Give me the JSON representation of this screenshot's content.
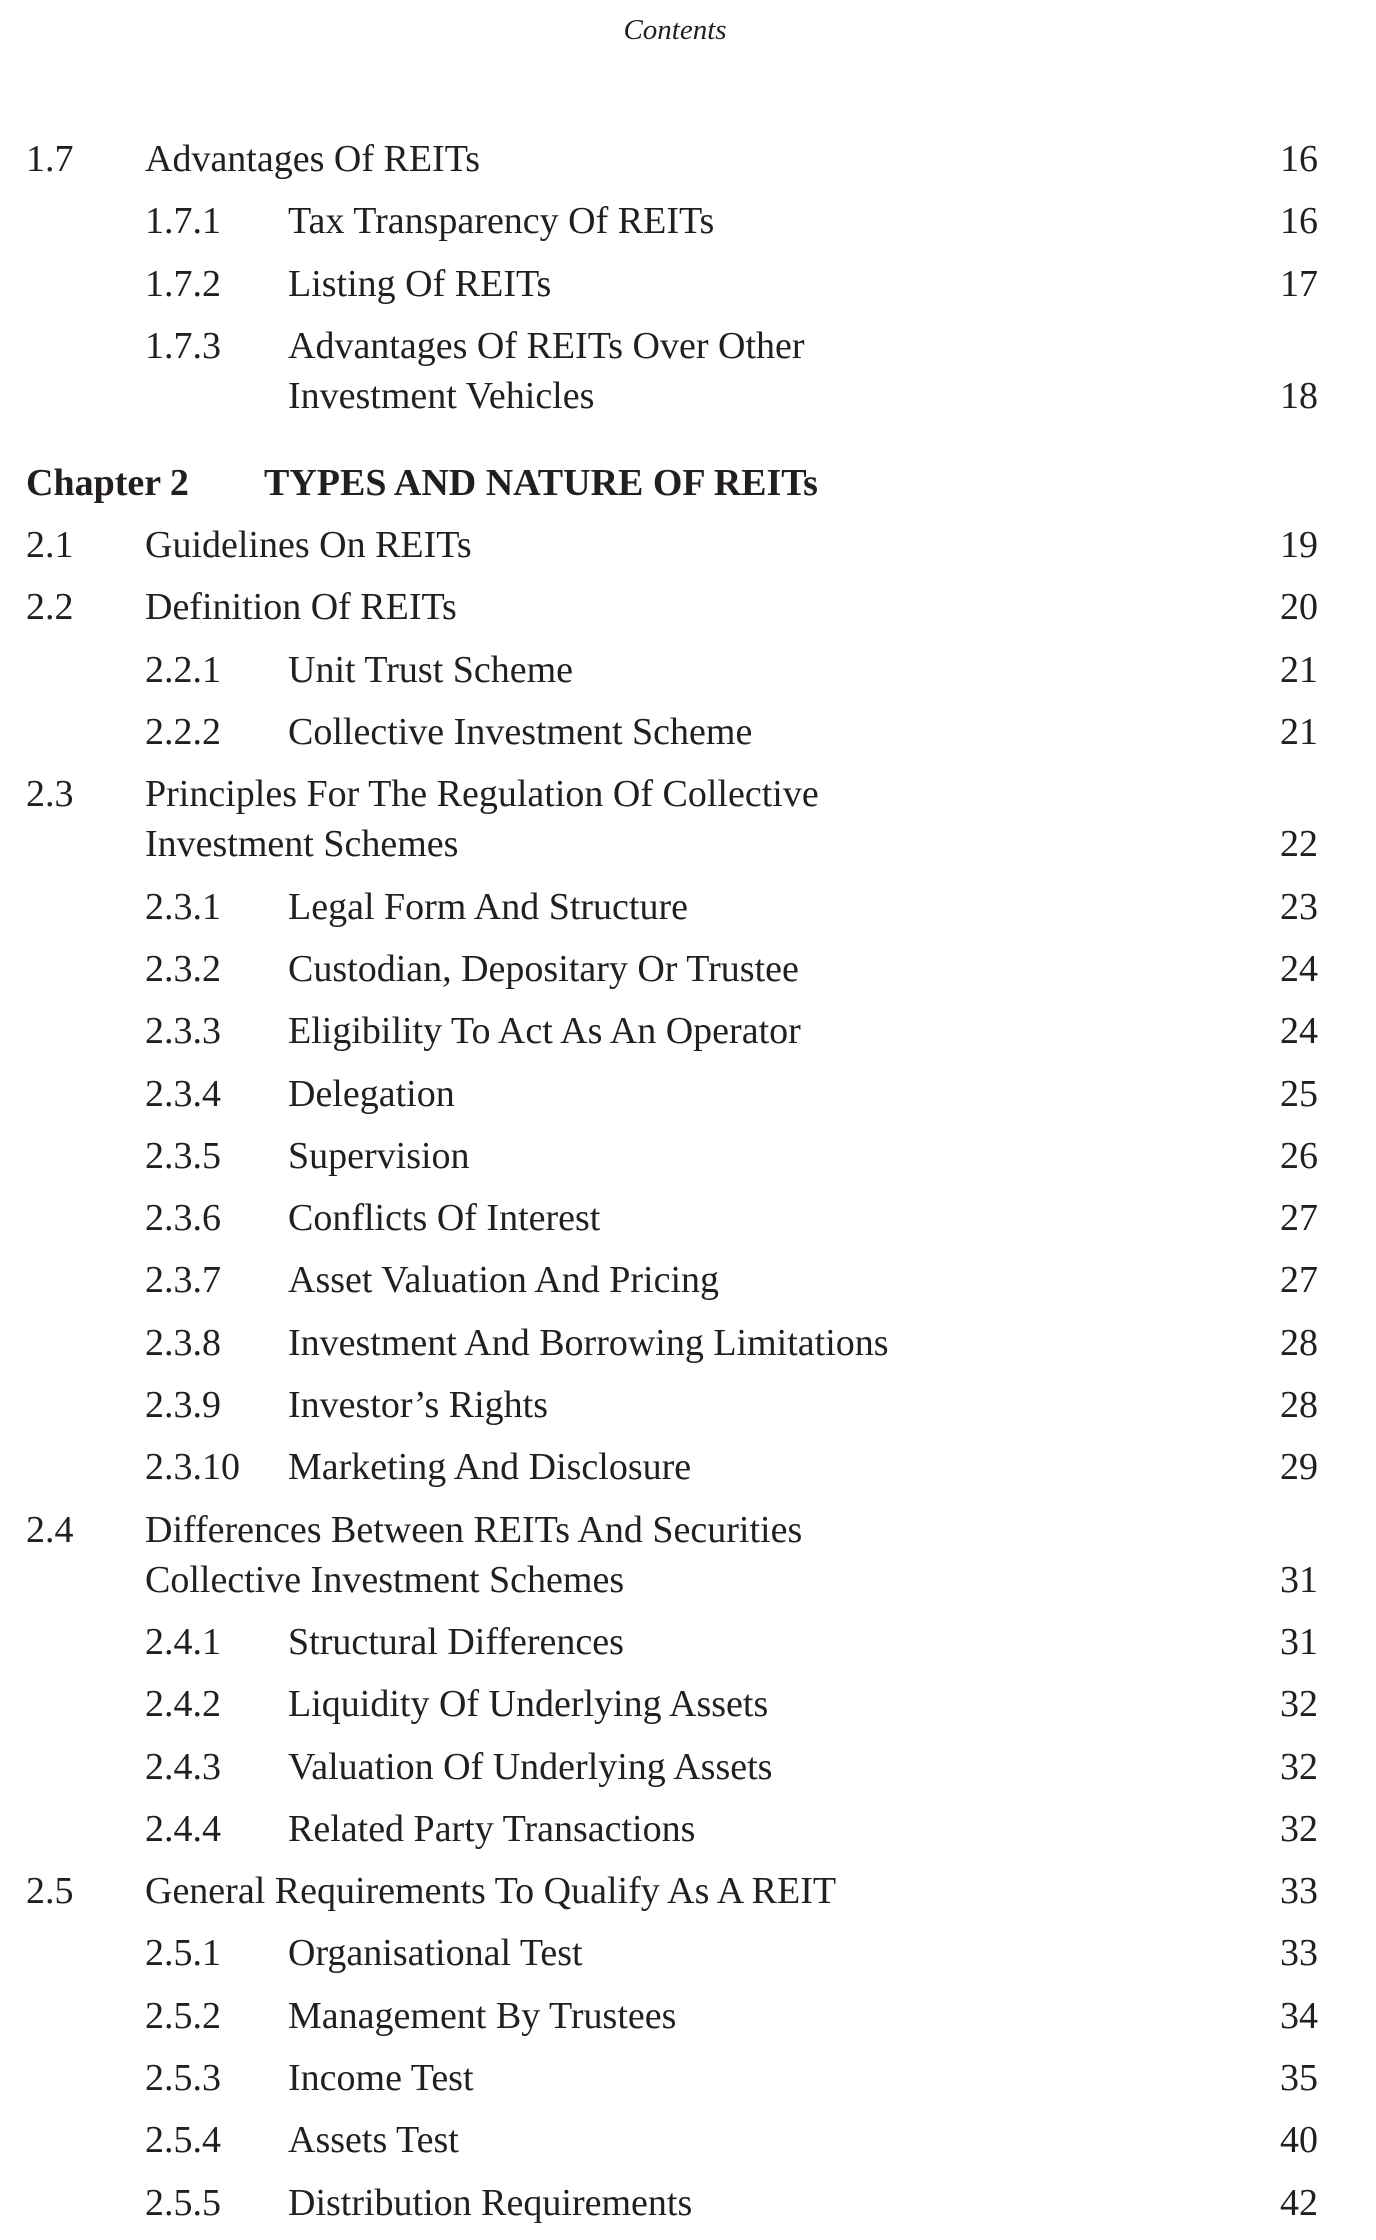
{
  "header": {
    "title": "Contents"
  },
  "entries": [
    {
      "type": "lvl1",
      "number": "1.7",
      "lines": [
        "Advantages Of REITs"
      ],
      "page": "16"
    },
    {
      "type": "lvl2",
      "number": "1.7.1",
      "lines": [
        "Tax Transparency Of REITs"
      ],
      "page": "16"
    },
    {
      "type": "lvl2",
      "number": "1.7.2",
      "lines": [
        "Listing Of REITs"
      ],
      "page": "17"
    },
    {
      "type": "lvl2",
      "number": "1.7.3",
      "lines": [
        "Advantages Of REITs Over Other",
        "Investment Vehicles"
      ],
      "page": "18"
    },
    {
      "type": "chapter",
      "number": "Chapter 2",
      "lines": [
        "TYPES AND NATURE OF REITs"
      ],
      "page": ""
    },
    {
      "type": "lvl1",
      "number": "2.1",
      "lines": [
        "Guidelines On REITs"
      ],
      "page": "19"
    },
    {
      "type": "lvl1",
      "number": "2.2",
      "lines": [
        "Definition Of REITs"
      ],
      "page": "20"
    },
    {
      "type": "lvl2",
      "number": "2.2.1",
      "lines": [
        "Unit Trust Scheme"
      ],
      "page": "21"
    },
    {
      "type": "lvl2",
      "number": "2.2.2",
      "lines": [
        "Collective Investment Scheme"
      ],
      "page": "21"
    },
    {
      "type": "lvl1",
      "number": "2.3",
      "lines": [
        "Principles For The Regulation Of Collective",
        "Investment Schemes"
      ],
      "page": "22"
    },
    {
      "type": "lvl2",
      "number": "2.3.1",
      "lines": [
        "Legal Form And Structure"
      ],
      "page": "23"
    },
    {
      "type": "lvl2",
      "number": "2.3.2",
      "lines": [
        "Custodian, Depositary Or Trustee"
      ],
      "page": "24"
    },
    {
      "type": "lvl2",
      "number": "2.3.3",
      "lines": [
        "Eligibility To Act As An Operator"
      ],
      "page": "24"
    },
    {
      "type": "lvl2",
      "number": "2.3.4",
      "lines": [
        "Delegation"
      ],
      "page": "25"
    },
    {
      "type": "lvl2",
      "number": "2.3.5",
      "lines": [
        "Supervision"
      ],
      "page": "26"
    },
    {
      "type": "lvl2",
      "number": "2.3.6",
      "lines": [
        "Conflicts Of Interest"
      ],
      "page": "27"
    },
    {
      "type": "lvl2",
      "number": "2.3.7",
      "lines": [
        "Asset Valuation And Pricing"
      ],
      "page": "27"
    },
    {
      "type": "lvl2",
      "number": "2.3.8",
      "lines": [
        "Investment And Borrowing Limitations"
      ],
      "page": "28"
    },
    {
      "type": "lvl2",
      "number": "2.3.9",
      "lines": [
        "Investor’s Rights"
      ],
      "page": "28"
    },
    {
      "type": "lvl2",
      "number": "2.3.10",
      "lines": [
        "Marketing And Disclosure"
      ],
      "page": "29"
    },
    {
      "type": "lvl1",
      "number": "2.4",
      "lines": [
        "Differences Between REITs And Securities",
        "Collective Investment Schemes"
      ],
      "page": "31"
    },
    {
      "type": "lvl2",
      "number": "2.4.1",
      "lines": [
        "Structural Differences"
      ],
      "page": "31"
    },
    {
      "type": "lvl2",
      "number": "2.4.2",
      "lines": [
        "Liquidity Of Underlying Assets"
      ],
      "page": "32"
    },
    {
      "type": "lvl2",
      "number": "2.4.3",
      "lines": [
        "Valuation Of Underlying Assets"
      ],
      "page": "32"
    },
    {
      "type": "lvl2",
      "number": "2.4.4",
      "lines": [
        "Related Party Transactions"
      ],
      "page": "32"
    },
    {
      "type": "lvl1",
      "number": "2.5",
      "lines": [
        "General Requirements To Qualify As A REIT"
      ],
      "page": "33"
    },
    {
      "type": "lvl2",
      "number": "2.5.1",
      "lines": [
        "Organisational Test"
      ],
      "page": "33"
    },
    {
      "type": "lvl2",
      "number": "2.5.2",
      "lines": [
        "Management By Trustees"
      ],
      "page": "34"
    },
    {
      "type": "lvl2",
      "number": "2.5.3",
      "lines": [
        "Income Test"
      ],
      "page": "35"
    },
    {
      "type": "lvl2",
      "number": "2.5.4",
      "lines": [
        "Assets Test"
      ],
      "page": "40"
    },
    {
      "type": "lvl2",
      "number": "2.5.5",
      "lines": [
        "Distribution Requirements"
      ],
      "page": "42"
    }
  ]
}
